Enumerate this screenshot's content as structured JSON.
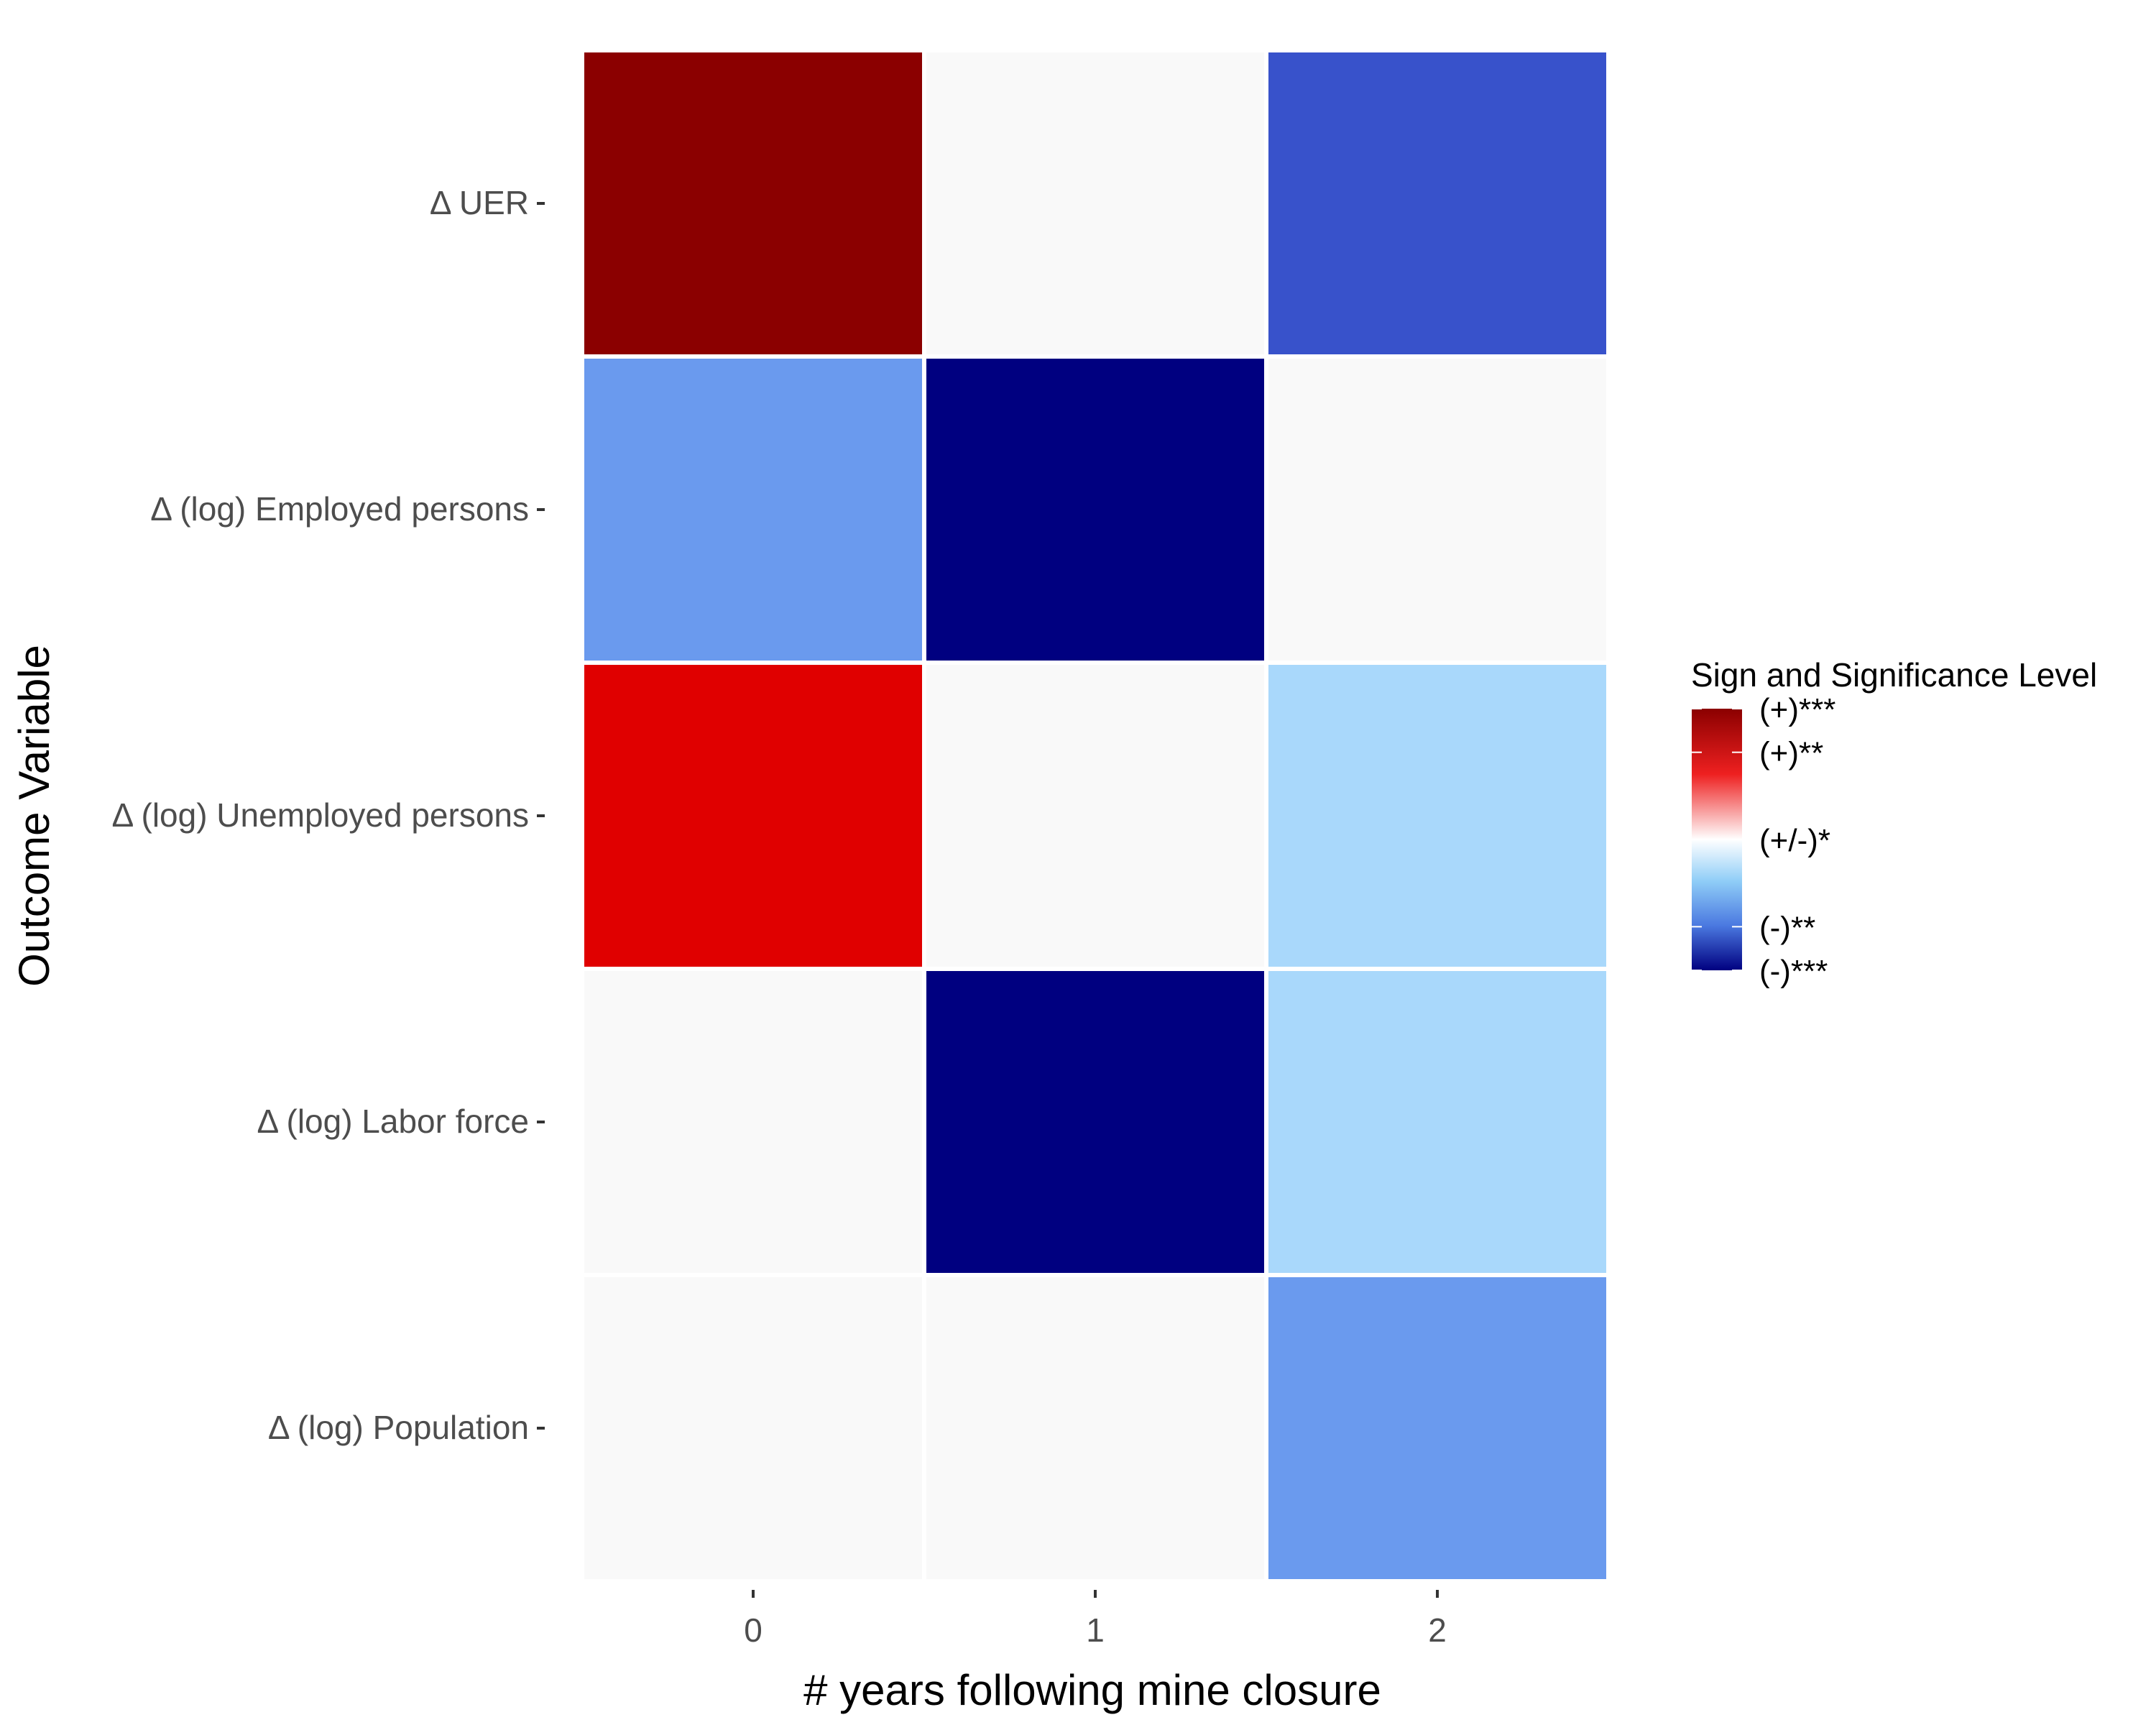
{
  "chart_data": {
    "type": "heatmap",
    "xlabel": "# years following mine closure",
    "ylabel": "Outcome Variable",
    "x": [
      "0",
      "1",
      "2"
    ],
    "y": [
      "Δ UER",
      "Δ (log) Employed persons",
      "Δ (log) Unemployed persons",
      "Δ (log) Labor force",
      "Δ (log) Population"
    ],
    "values": [
      [
        3,
        0,
        -2.3
      ],
      [
        -2,
        -3,
        0
      ],
      [
        2.4,
        0,
        -1.2
      ],
      [
        0,
        -3,
        -1.2
      ],
      [
        0,
        0,
        -2
      ]
    ],
    "value_range": [
      -3,
      3
    ],
    "legend": {
      "title": "Sign and Significance Level",
      "position": "right",
      "labels": [
        "(+)***",
        "(+)**",
        "(+/-)*",
        "(-)**",
        "(-)***"
      ],
      "breaks": [
        3,
        2,
        0,
        -2,
        -3
      ]
    },
    "colors": {
      "pos3": "#8b0000",
      "pos2": "#e00000",
      "neutral": "#f9f9f9",
      "neg1": "#a9d8fb",
      "neg2": "#6a9aee",
      "neg3": "#000080"
    },
    "grid": false
  }
}
